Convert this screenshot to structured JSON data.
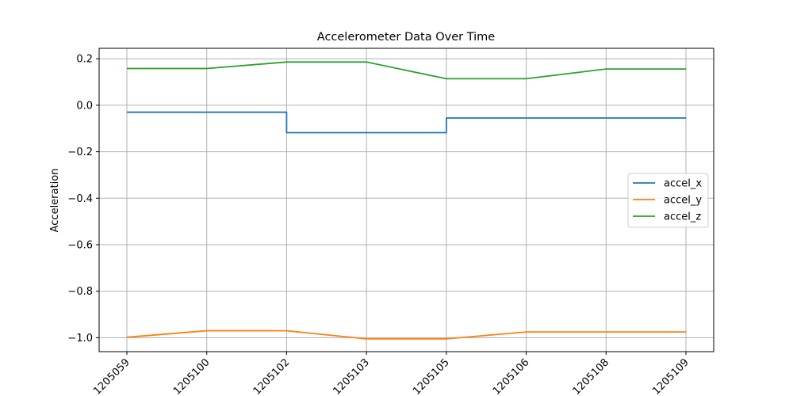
{
  "chart_data": {
    "type": "line",
    "title": "Accelerometer Data Over Time",
    "xlabel": "",
    "ylabel": "Acceleration",
    "categories": [
      "1205059",
      "1205100",
      "1205102",
      "1205103",
      "1205105",
      "1205106",
      "1205108",
      "1205109"
    ],
    "ylim": [
      -1.06,
      0.245
    ],
    "yticks": [
      -1.0,
      -0.8,
      -0.6,
      -0.4,
      -0.2,
      0.0,
      0.2
    ],
    "ytick_labels": [
      "−1.0",
      "−0.8",
      "−0.6",
      "−0.4",
      "−0.2",
      "0.0",
      "0.2"
    ],
    "grid": true,
    "legend_position": "center-right",
    "series": [
      {
        "name": "accel_x",
        "color": "#1f77b4",
        "points": [
          {
            "x": "1205059",
            "y": -0.03
          },
          {
            "x": "1205102",
            "y": -0.03
          },
          {
            "x": "1205102",
            "y": -0.118
          },
          {
            "x": "1205105",
            "y": -0.118
          },
          {
            "x": "1205105",
            "y": -0.055
          },
          {
            "x": "1205109",
            "y": -0.055
          }
        ]
      },
      {
        "name": "accel_y",
        "color": "#ff7f0e",
        "points": [
          {
            "x": "1205059",
            "y": -0.998
          },
          {
            "x": "1205100",
            "y": -0.97
          },
          {
            "x": "1205102",
            "y": -0.97
          },
          {
            "x": "1205103",
            "y": -1.005
          },
          {
            "x": "1205105",
            "y": -1.005
          },
          {
            "x": "1205106",
            "y": -0.975
          },
          {
            "x": "1205108",
            "y": -0.975
          },
          {
            "x": "1205109",
            "y": -0.975
          }
        ]
      },
      {
        "name": "accel_z",
        "color": "#2ca02c",
        "points": [
          {
            "x": "1205059",
            "y": 0.158
          },
          {
            "x": "1205100",
            "y": 0.158
          },
          {
            "x": "1205102",
            "y": 0.186
          },
          {
            "x": "1205103",
            "y": 0.186
          },
          {
            "x": "1205105",
            "y": 0.114
          },
          {
            "x": "1205106",
            "y": 0.114
          },
          {
            "x": "1205108",
            "y": 0.156
          },
          {
            "x": "1205109",
            "y": 0.156
          }
        ]
      }
    ]
  }
}
